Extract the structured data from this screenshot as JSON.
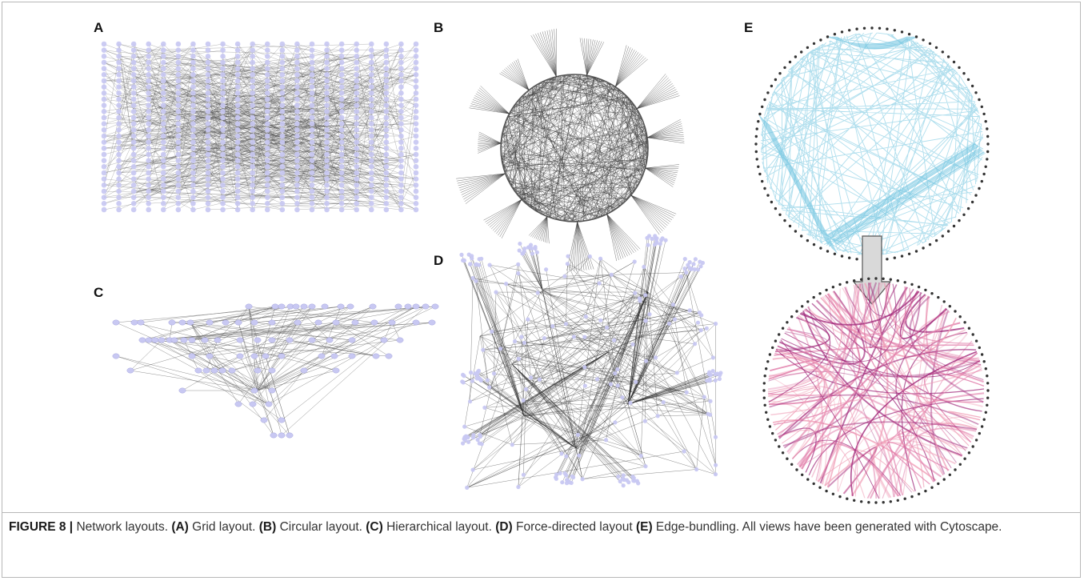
{
  "panels": {
    "a_label": "A",
    "b_label": "B",
    "c_label": "C",
    "d_label": "D",
    "e_label": "E"
  },
  "colors": {
    "node": "#c8c8f2",
    "edge_dark": "#3a3a3a",
    "edge_light": "#8a8a8a",
    "bundle_blue": "#6ec3df",
    "bundle_pink": "#e07aa8",
    "bundle_magenta": "#a0287a",
    "arrow_fill": "#d9d9d9",
    "frame": "#b8b8b8"
  },
  "caption": {
    "figure_label": "FIGURE 8 |",
    "intro": " Network layouts. ",
    "a_ref": "(A)",
    "a_text": " Grid layout. ",
    "b_ref": "(B)",
    "b_text": " Circular layout. ",
    "c_ref": "(C)",
    "c_text": " Hierarchical layout. ",
    "d_ref": "(D)",
    "d_text": " Force-directed layout ",
    "e_ref": "(E)",
    "e_text": " Edge-bundling. All views have been generated with Cytoscape."
  }
}
